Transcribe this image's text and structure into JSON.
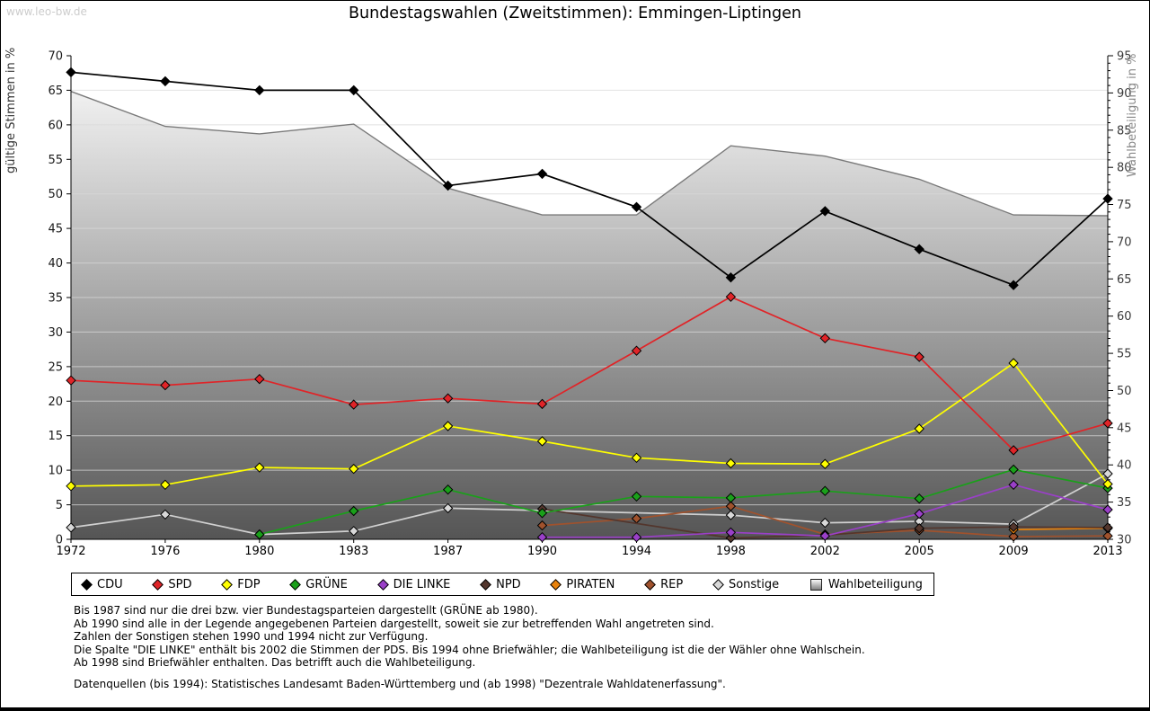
{
  "watermark": "www.leo-bw.de",
  "title": "Bundestagswahlen (Zweitstimmen): Emmingen-Liptingen",
  "chart_data": {
    "type": "line",
    "categories": [
      "1972",
      "1976",
      "1980",
      "1983",
      "1987",
      "1990",
      "1994",
      "1998",
      "2002",
      "2005",
      "2009",
      "2013"
    ],
    "left_axis": {
      "label": "gültige Stimmen in %",
      "min": 0,
      "max": 70,
      "step": 5
    },
    "right_axis": {
      "label": "Wahlbeteiligung in %",
      "min": 30,
      "max": 95,
      "step": 5
    },
    "grid": true,
    "legend_position": "bottom",
    "series": [
      {
        "name": "CDU",
        "color": "#000000",
        "axis": "left",
        "marker": "diamond",
        "values": [
          67.6,
          66.3,
          65.0,
          65.0,
          51.2,
          52.9,
          48.1,
          37.9,
          47.5,
          42.0,
          36.8,
          49.3
        ]
      },
      {
        "name": "SPD",
        "color": "#e02428",
        "axis": "left",
        "marker": "diamond",
        "values": [
          23.0,
          22.3,
          23.2,
          19.5,
          20.4,
          19.6,
          27.3,
          35.1,
          29.1,
          26.4,
          12.9,
          16.8
        ]
      },
      {
        "name": "FDP",
        "color": "#ffff00",
        "axis": "left",
        "marker": "diamond",
        "values": [
          7.7,
          7.9,
          10.4,
          10.2,
          16.4,
          14.2,
          11.8,
          11.0,
          10.9,
          16.0,
          25.5,
          8.0
        ]
      },
      {
        "name": "GRÜNE",
        "color": "#1aa01a",
        "axis": "left",
        "marker": "diamond",
        "values": [
          null,
          null,
          0.7,
          4.1,
          7.2,
          3.8,
          6.2,
          6.0,
          7.0,
          5.9,
          10.1,
          7.4
        ]
      },
      {
        "name": "DIE LINKE",
        "color": "#9a40c8",
        "axis": "left",
        "marker": "diamond",
        "values": [
          null,
          null,
          null,
          null,
          null,
          0.3,
          0.3,
          1.0,
          0.5,
          3.7,
          7.9,
          4.3
        ]
      },
      {
        "name": "NPD",
        "color": "#53362d",
        "axis": "left",
        "marker": "diamond",
        "values": [
          null,
          null,
          null,
          null,
          null,
          4.4,
          null,
          0.2,
          0.6,
          1.6,
          1.8,
          1.7
        ]
      },
      {
        "name": "PIRATEN",
        "color": "#e8820c",
        "axis": "left",
        "marker": "diamond",
        "values": [
          null,
          null,
          null,
          null,
          null,
          null,
          null,
          null,
          null,
          null,
          1.4,
          1.6
        ]
      },
      {
        "name": "REP",
        "color": "#a0522d",
        "axis": "left",
        "marker": "diamond",
        "values": [
          null,
          null,
          null,
          null,
          null,
          2.0,
          3.0,
          4.8,
          0.7,
          1.3,
          0.4,
          0.5
        ]
      },
      {
        "name": "Sonstige",
        "color": "#d8d8d8",
        "axis": "left",
        "marker": "diamond",
        "values": [
          1.7,
          3.6,
          0.7,
          1.2,
          4.5,
          null,
          null,
          3.5,
          2.4,
          2.6,
          2.2,
          9.5
        ]
      },
      {
        "name": "Wahlbeteiligung",
        "color": "#9e9e9e",
        "axis": "right",
        "type": "area",
        "values": [
          90.2,
          85.5,
          84.5,
          85.8,
          77.2,
          73.6,
          73.6,
          82.9,
          81.5,
          78.4,
          73.6,
          73.5
        ]
      }
    ]
  },
  "footnotes": [
    "Bis 1987 sind nur die drei bzw. vier Bundestagsparteien dargestellt (GRÜNE ab 1980).",
    "Ab 1990 sind alle in der Legende angegebenen Parteien dargestellt, soweit sie zur betreffenden Wahl angetreten sind.",
    "Zahlen der Sonstigen stehen 1990 und 1994 nicht zur Verfügung.",
    "Die Spalte \"DIE LINKE\" enthält bis 2002 die Stimmen der PDS. Bis 1994 ohne Briefwähler; die Wahlbeteiligung ist die der Wähler ohne Wahlschein.",
    "Ab 1998 sind Briefwähler enthalten. Das betrifft auch die Wahlbeteiligung."
  ],
  "source": "Datenquellen (bis 1994): Statistisches Landesamt Baden-Württemberg und (ab 1998) \"Dezentrale Wahldatenerfassung\"."
}
